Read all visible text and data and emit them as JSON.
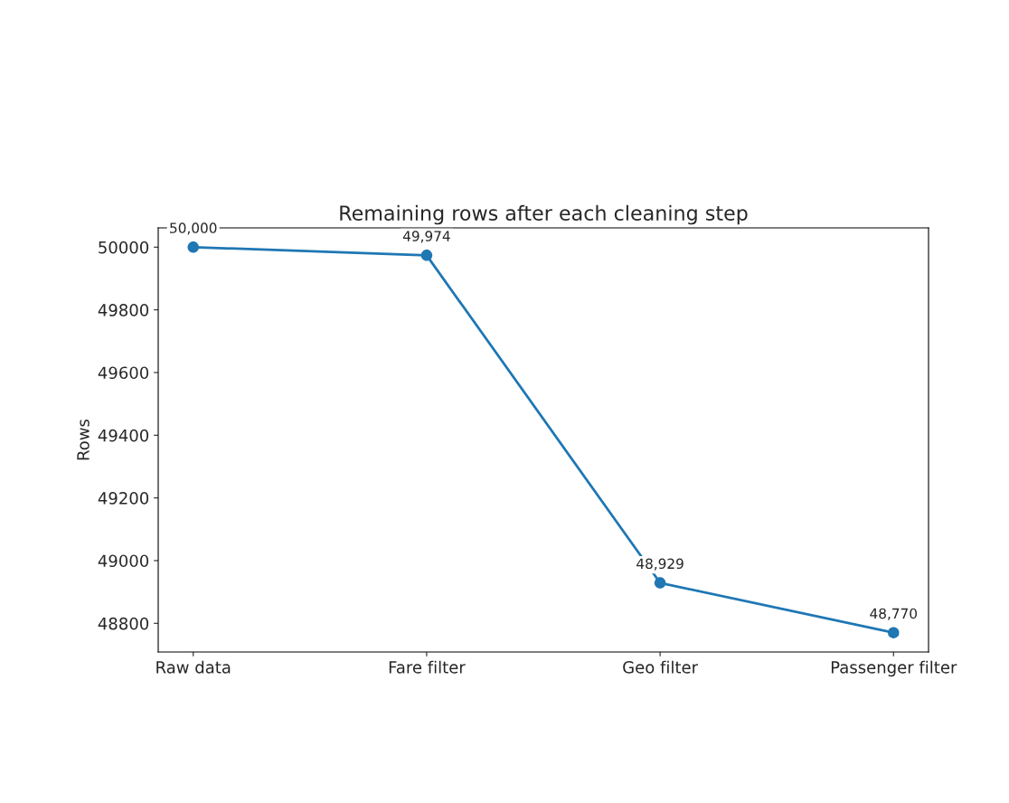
{
  "chart_data": {
    "type": "line",
    "title": "Remaining rows after each cleaning step",
    "ylabel": "Rows",
    "categories": [
      "Raw data",
      "Fare filter",
      "Geo filter",
      "Passenger filter"
    ],
    "series": [
      {
        "color": "#1f77b4",
        "values": [
          50000,
          49974,
          48929,
          48770
        ],
        "value_labels": [
          "50,000",
          "49,974",
          "48,929",
          "48,770"
        ]
      }
    ],
    "ylim": [
      48708.5,
      50061.5
    ],
    "yticks": [
      48800,
      49000,
      49200,
      49400,
      49600,
      49800,
      50000
    ],
    "marker": "circle",
    "line_style": "solid",
    "grid": false,
    "legend": false
  }
}
